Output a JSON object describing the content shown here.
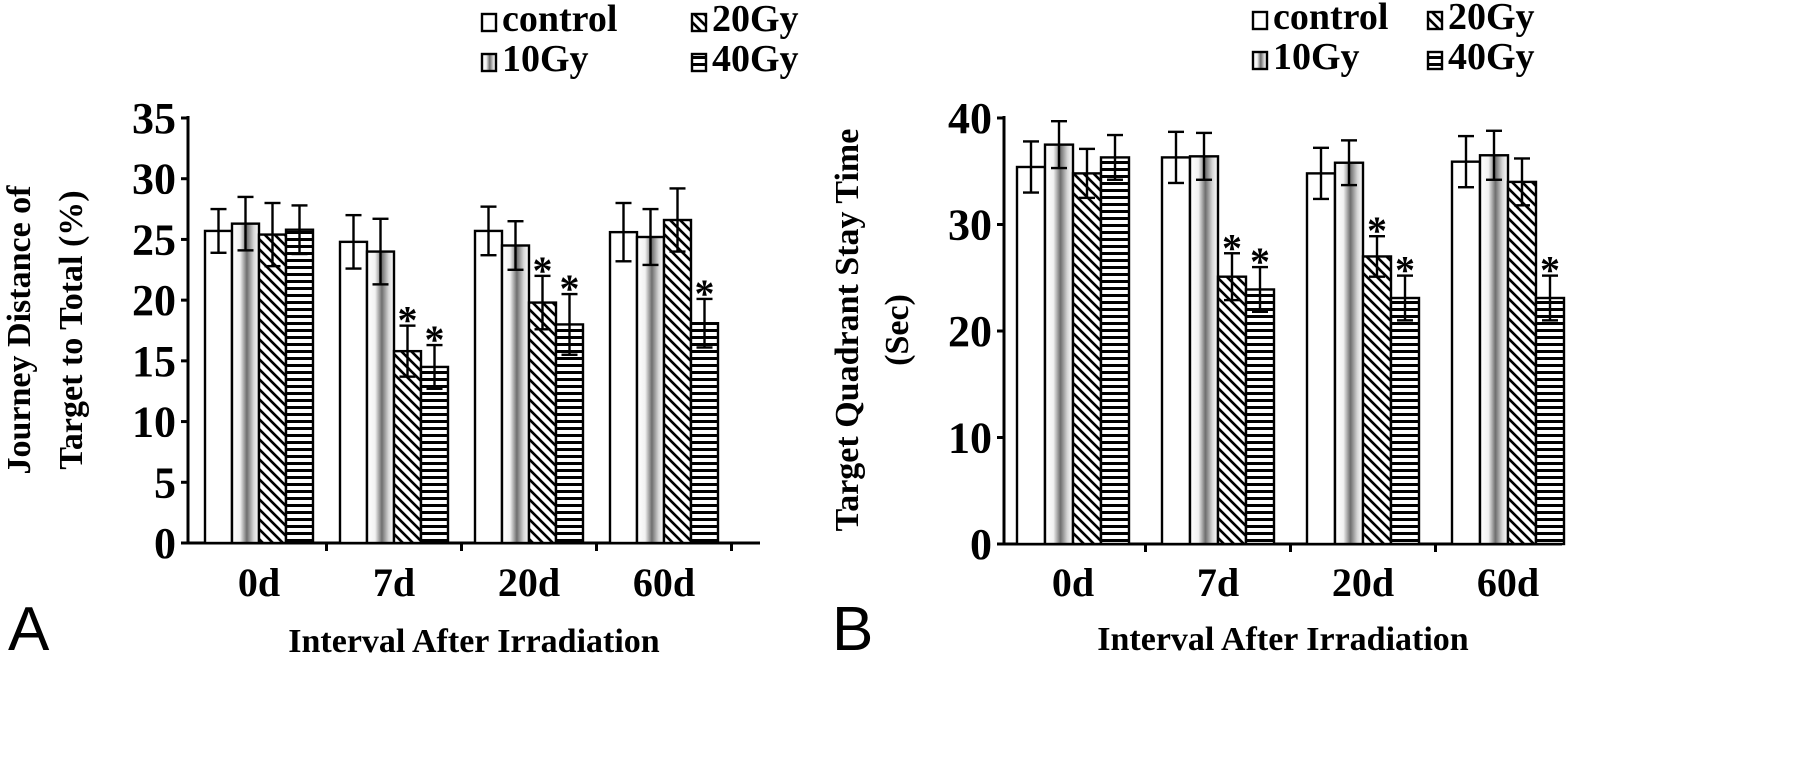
{
  "chart_data": [
    {
      "type": "bar",
      "panel_label": "A",
      "categories": [
        "0d",
        "7d",
        "20d",
        "60d"
      ],
      "series": [
        {
          "name": "control",
          "values": [
            25.7,
            24.8,
            25.7,
            25.6
          ],
          "errors": [
            1.8,
            2.2,
            2.0,
            2.4
          ]
        },
        {
          "name": "10Gy",
          "values": [
            26.3,
            24.0,
            24.5,
            25.2
          ],
          "errors": [
            2.2,
            2.7,
            2.0,
            2.3
          ]
        },
        {
          "name": "20Gy",
          "values": [
            25.4,
            15.8,
            19.8,
            26.6
          ],
          "errors": [
            2.6,
            2.1,
            2.2,
            2.6
          ]
        },
        {
          "name": "40Gy",
          "values": [
            25.8,
            14.5,
            18.0,
            18.1
          ],
          "errors": [
            2.0,
            1.8,
            2.5,
            2.0
          ]
        }
      ],
      "significance": [
        {
          "category": "7d",
          "series": "20Gy",
          "label": "*"
        },
        {
          "category": "7d",
          "series": "40Gy",
          "label": "*"
        },
        {
          "category": "20d",
          "series": "20Gy",
          "label": "*"
        },
        {
          "category": "20d",
          "series": "40Gy",
          "label": "*"
        },
        {
          "category": "60d",
          "series": "40Gy",
          "label": "*"
        }
      ],
      "xlabel": "Interval After Irradiation",
      "ylabel": [
        "Journey Distance of",
        "Target to Total (%)"
      ],
      "ylim": [
        0,
        35
      ],
      "yticks": [
        0,
        5,
        10,
        15,
        20,
        25,
        30,
        35
      ],
      "legend": {
        "placement": "top-right",
        "entries": [
          "control",
          "20Gy",
          "10Gy",
          "40Gy"
        ]
      },
      "grid": false
    },
    {
      "type": "bar",
      "panel_label": "B",
      "categories": [
        "0d",
        "7d",
        "20d",
        "60d"
      ],
      "series": [
        {
          "name": "control",
          "values": [
            35.4,
            36.3,
            34.8,
            35.9
          ],
          "errors": [
            2.4,
            2.4,
            2.4,
            2.4
          ]
        },
        {
          "name": "10Gy",
          "values": [
            37.5,
            36.4,
            35.8,
            36.5
          ],
          "errors": [
            2.2,
            2.2,
            2.1,
            2.3
          ]
        },
        {
          "name": "20Gy",
          "values": [
            34.8,
            25.1,
            27.0,
            34.0
          ],
          "errors": [
            2.3,
            2.2,
            1.9,
            2.2
          ]
        },
        {
          "name": "40Gy",
          "values": [
            36.3,
            23.9,
            23.1,
            23.1
          ],
          "errors": [
            2.1,
            2.1,
            2.1,
            2.1
          ]
        }
      ],
      "significance": [
        {
          "category": "7d",
          "series": "20Gy",
          "label": "*"
        },
        {
          "category": "7d",
          "series": "40Gy",
          "label": "*"
        },
        {
          "category": "20d",
          "series": "20Gy",
          "label": "*"
        },
        {
          "category": "20d",
          "series": "40Gy",
          "label": "*"
        },
        {
          "category": "60d",
          "series": "40Gy",
          "label": "*"
        }
      ],
      "xlabel": "Interval After Irradiation",
      "ylabel": [
        "Target Quadrant Stay Time",
        "(Sec)"
      ],
      "ylim": [
        0,
        40
      ],
      "yticks": [
        0,
        10,
        20,
        30,
        40
      ],
      "legend": {
        "placement": "top-right",
        "entries": [
          "control",
          "20Gy",
          "10Gy",
          "40Gy"
        ]
      },
      "grid": false
    }
  ]
}
